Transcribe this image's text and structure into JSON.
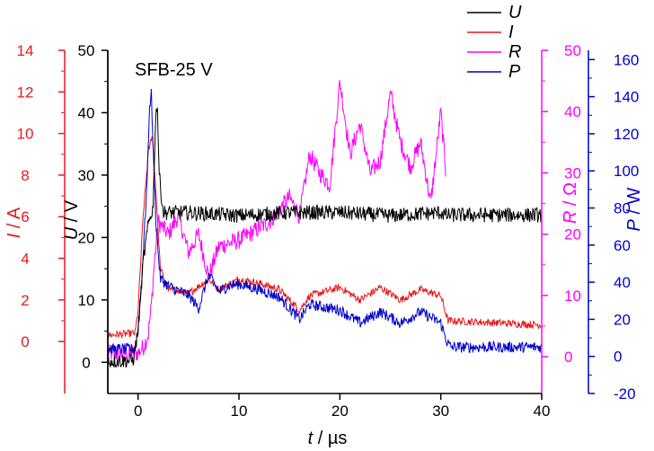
{
  "chart_data": {
    "type": "line",
    "annotation": "SFB-25 V",
    "x_axis": {
      "label_var": "t",
      "label_unit": " / µs",
      "range": [
        -3,
        40
      ],
      "ticks": [
        0,
        10,
        20,
        30,
        40
      ]
    },
    "y_axes": [
      {
        "key": "I",
        "label_var": "I",
        "label_unit": " / A",
        "color": "#e41a1c",
        "range": [
          -2.5,
          14
        ],
        "ticks": [
          0,
          2,
          4,
          6,
          8,
          10,
          12,
          14
        ]
      },
      {
        "key": "U",
        "label_var": "U",
        "label_unit": " / V",
        "color": "#000000",
        "range": [
          -5,
          50
        ],
        "ticks": [
          0,
          10,
          20,
          30,
          40,
          50
        ]
      },
      {
        "key": "R",
        "label_var": "R",
        "label_unit": " / Ω",
        "color": "#ff00ff",
        "range": [
          -6,
          50
        ],
        "ticks": [
          0,
          10,
          20,
          30,
          40,
          50
        ]
      },
      {
        "key": "P",
        "label_var": "P",
        "label_unit": " / W",
        "color": "#0000cc",
        "range": [
          -20,
          165
        ],
        "ticks": [
          -20,
          0,
          20,
          40,
          60,
          80,
          100,
          120,
          140,
          160
        ]
      }
    ],
    "legend": {
      "position": "top-right",
      "entries": [
        "U",
        "I",
        "R",
        "P"
      ]
    },
    "series": [
      {
        "name": "U",
        "axis": "U",
        "color": "#000000",
        "noise": 1.2,
        "zorder": 4,
        "points": [
          [
            -3,
            0.2
          ],
          [
            -0.5,
            0.3
          ],
          [
            0,
            5
          ],
          [
            0.5,
            16
          ],
          [
            1,
            22
          ],
          [
            1.5,
            25
          ],
          [
            1.7,
            38
          ],
          [
            1.9,
            42
          ],
          [
            2.1,
            30
          ],
          [
            2.5,
            24
          ],
          [
            5,
            24
          ],
          [
            10,
            23.5
          ],
          [
            15,
            24
          ],
          [
            20,
            24
          ],
          [
            25,
            23.5
          ],
          [
            30,
            24
          ],
          [
            30.6,
            23.5
          ],
          [
            31,
            23.6
          ],
          [
            40,
            23.6
          ]
        ]
      },
      {
        "name": "I",
        "axis": "I",
        "color": "#e41a1c",
        "noise": 0.18,
        "zorder": 2,
        "points": [
          [
            -3,
            0.3
          ],
          [
            -0.3,
            0.4
          ],
          [
            0,
            1.5
          ],
          [
            0.5,
            6
          ],
          [
            1,
            9
          ],
          [
            1.4,
            10
          ],
          [
            1.8,
            7
          ],
          [
            2.2,
            3.5
          ],
          [
            3,
            2.5
          ],
          [
            5,
            2.3
          ],
          [
            7,
            3
          ],
          [
            8,
            2.5
          ],
          [
            10,
            3
          ],
          [
            12,
            2.8
          ],
          [
            14,
            2.5
          ],
          [
            16,
            1.5
          ],
          [
            17,
            2.2
          ],
          [
            20,
            2.6
          ],
          [
            22,
            2
          ],
          [
            24,
            2.6
          ],
          [
            26,
            2
          ],
          [
            28,
            2.5
          ],
          [
            30,
            2.2
          ],
          [
            30.7,
            1
          ],
          [
            40,
            0.8
          ]
        ]
      },
      {
        "name": "R",
        "axis": "R",
        "color": "#ff00ff",
        "noise": 1.5,
        "zorder": 1,
        "points": [
          [
            -3,
            0.5
          ],
          [
            0,
            0.6
          ],
          [
            0.5,
            1.5
          ],
          [
            1,
            3.5
          ],
          [
            1.3,
            8
          ],
          [
            1.6,
            15
          ],
          [
            2,
            22
          ],
          [
            3,
            20
          ],
          [
            4,
            23
          ],
          [
            5,
            17
          ],
          [
            6,
            20
          ],
          [
            7,
            13
          ],
          [
            8,
            18
          ],
          [
            10,
            19
          ],
          [
            12,
            21
          ],
          [
            13,
            22
          ],
          [
            14,
            24
          ],
          [
            15,
            26
          ],
          [
            16,
            23
          ],
          [
            17,
            33
          ],
          [
            18,
            30
          ],
          [
            19,
            28
          ],
          [
            20,
            45
          ],
          [
            21,
            33
          ],
          [
            22,
            38
          ],
          [
            23,
            30
          ],
          [
            24,
            32
          ],
          [
            25,
            43
          ],
          [
            26,
            35
          ],
          [
            27,
            31
          ],
          [
            28,
            35
          ],
          [
            29,
            25
          ],
          [
            30,
            40
          ],
          [
            30.5,
            30
          ]
        ]
      },
      {
        "name": "P",
        "axis": "P",
        "color": "#0000cc",
        "noise": 3,
        "zorder": 3,
        "points": [
          [
            -3,
            4
          ],
          [
            -0.3,
            4
          ],
          [
            0,
            15
          ],
          [
            0.3,
            35
          ],
          [
            0.6,
            65
          ],
          [
            0.9,
            95
          ],
          [
            1.1,
            130
          ],
          [
            1.3,
            145
          ],
          [
            1.5,
            110
          ],
          [
            1.8,
            70
          ],
          [
            2.2,
            42
          ],
          [
            3,
            38
          ],
          [
            5,
            33
          ],
          [
            6,
            26
          ],
          [
            7,
            44
          ],
          [
            8,
            35
          ],
          [
            9,
            38
          ],
          [
            10,
            39
          ],
          [
            12,
            36
          ],
          [
            14,
            32
          ],
          [
            16,
            20
          ],
          [
            17,
            28
          ],
          [
            20,
            25
          ],
          [
            22,
            18
          ],
          [
            24,
            24
          ],
          [
            26,
            18
          ],
          [
            28,
            24
          ],
          [
            30,
            18
          ],
          [
            30.6,
            8
          ],
          [
            31,
            5
          ],
          [
            40,
            5
          ]
        ]
      }
    ]
  }
}
